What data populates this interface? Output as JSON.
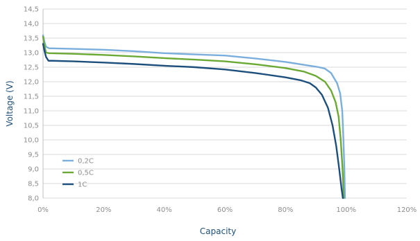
{
  "chart_data": {
    "type": "line",
    "title": "",
    "xlabel": "Capacity",
    "ylabel": "Voltage (V)",
    "xlim": [
      0,
      120
    ],
    "ylim": [
      8.0,
      14.5
    ],
    "x_ticks": [
      0,
      20,
      40,
      60,
      80,
      100,
      120
    ],
    "x_tick_labels": [
      "0%",
      "20%",
      "40%",
      "60%",
      "80%",
      "100%",
      "120%"
    ],
    "y_ticks": [
      8.0,
      8.5,
      9.0,
      9.5,
      10.0,
      10.5,
      11.0,
      11.5,
      12.0,
      12.5,
      13.0,
      13.5,
      14.0,
      14.5
    ],
    "y_tick_labels": [
      "8,0",
      "8,5",
      "9,0",
      "9,5",
      "10,0",
      "10,5",
      "11,0",
      "11,5",
      "12,0",
      "12,5",
      "13,0",
      "13,5",
      "14,0",
      "14,5"
    ],
    "grid": true,
    "legend_position": "bottom-left",
    "series": [
      {
        "name": "0,2C",
        "color": "#7aaedc",
        "points": [
          [
            0,
            13.6
          ],
          [
            0.5,
            13.35
          ],
          [
            1,
            13.2
          ],
          [
            2,
            13.15
          ],
          [
            10,
            13.13
          ],
          [
            20,
            13.1
          ],
          [
            30,
            13.05
          ],
          [
            40,
            12.98
          ],
          [
            50,
            12.94
          ],
          [
            60,
            12.9
          ],
          [
            70,
            12.8
          ],
          [
            80,
            12.68
          ],
          [
            88,
            12.55
          ],
          [
            91,
            12.5
          ],
          [
            93,
            12.45
          ],
          [
            95,
            12.3
          ],
          [
            97,
            11.95
          ],
          [
            98,
            11.6
          ],
          [
            98.7,
            11.0
          ],
          [
            99.1,
            10.0
          ],
          [
            99.4,
            9.0
          ],
          [
            99.6,
            8.0
          ]
        ]
      },
      {
        "name": "0,5C",
        "color": "#6aa933",
        "points": [
          [
            0,
            13.55
          ],
          [
            0.5,
            13.2
          ],
          [
            1,
            13.0
          ],
          [
            2,
            12.98
          ],
          [
            10,
            12.96
          ],
          [
            20,
            12.92
          ],
          [
            30,
            12.87
          ],
          [
            40,
            12.81
          ],
          [
            50,
            12.76
          ],
          [
            60,
            12.7
          ],
          [
            70,
            12.6
          ],
          [
            80,
            12.47
          ],
          [
            86,
            12.35
          ],
          [
            90,
            12.2
          ],
          [
            93,
            12.0
          ],
          [
            95,
            11.7
          ],
          [
            96.5,
            11.3
          ],
          [
            97.5,
            10.8
          ],
          [
            98.2,
            10.0
          ],
          [
            98.8,
            9.0
          ],
          [
            99.2,
            8.0
          ]
        ]
      },
      {
        "name": "1C",
        "color": "#1c4f7c",
        "points": [
          [
            0,
            13.3
          ],
          [
            0.5,
            13.05
          ],
          [
            1,
            12.85
          ],
          [
            1.8,
            12.72
          ],
          [
            3,
            12.72
          ],
          [
            10,
            12.7
          ],
          [
            20,
            12.66
          ],
          [
            30,
            12.61
          ],
          [
            40,
            12.55
          ],
          [
            50,
            12.5
          ],
          [
            60,
            12.42
          ],
          [
            70,
            12.3
          ],
          [
            80,
            12.15
          ],
          [
            85,
            12.05
          ],
          [
            88,
            11.95
          ],
          [
            90,
            11.8
          ],
          [
            92,
            11.55
          ],
          [
            94,
            11.1
          ],
          [
            95.5,
            10.5
          ],
          [
            96.7,
            9.8
          ],
          [
            97.7,
            9.0
          ],
          [
            98.5,
            8.3
          ],
          [
            98.9,
            8.0
          ]
        ]
      }
    ]
  }
}
